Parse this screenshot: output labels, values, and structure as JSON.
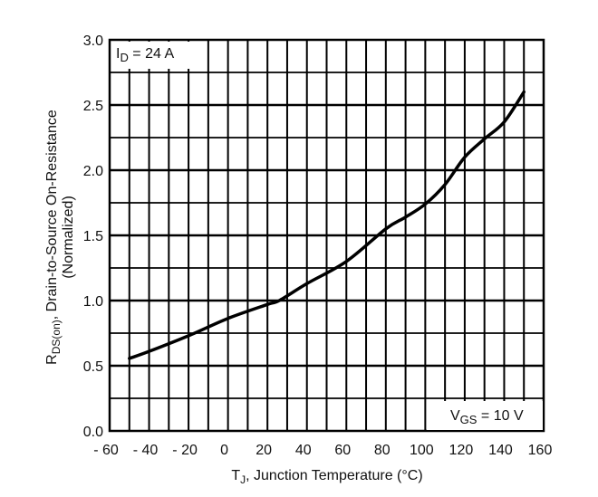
{
  "chart_data": {
    "type": "line",
    "xlabel": {
      "main": "T",
      "sub": "J",
      "rest": ", Junction Temperature (°C)"
    },
    "ylabel": {
      "main": "R",
      "sub": "DS(on)",
      "rest": ", Drain-to-Source On-Resistance",
      "line2": "(Normalized)"
    },
    "xlim": [
      -60,
      160
    ],
    "ylim": [
      0,
      3.0
    ],
    "x_ticks": [
      -60,
      -40,
      -20,
      0,
      20,
      40,
      60,
      80,
      100,
      120,
      140,
      160
    ],
    "x_tick_labels": [
      "- 60",
      "- 40",
      "- 20",
      "0",
      "20",
      "40",
      "60",
      "80",
      "100",
      "120",
      "140",
      "160"
    ],
    "y_ticks": [
      0,
      0.5,
      1.0,
      1.5,
      2.0,
      2.5,
      3.0
    ],
    "y_tick_labels": [
      "0.0",
      "0.5",
      "1.0",
      "1.5",
      "2.0",
      "2.5",
      "3.0"
    ],
    "grid": true,
    "annotations": [
      {
        "main": "I",
        "sub": "D",
        "rest": " = 24 A",
        "placement": "top-left"
      },
      {
        "main": "V",
        "sub": "GS",
        "rest": " = 10 V",
        "placement": "bottom-right"
      }
    ],
    "series": [
      {
        "color": "#000000",
        "x": [
          -50,
          -40,
          -20,
          0,
          20,
          26,
          40,
          60,
          80,
          90,
          100,
          110,
          120,
          130,
          140,
          150
        ],
        "y": [
          0.556,
          0.61,
          0.73,
          0.863,
          0.97,
          1.0,
          1.13,
          1.3,
          1.55,
          1.64,
          1.74,
          1.89,
          2.1,
          2.24,
          2.37,
          2.6
        ]
      }
    ]
  }
}
